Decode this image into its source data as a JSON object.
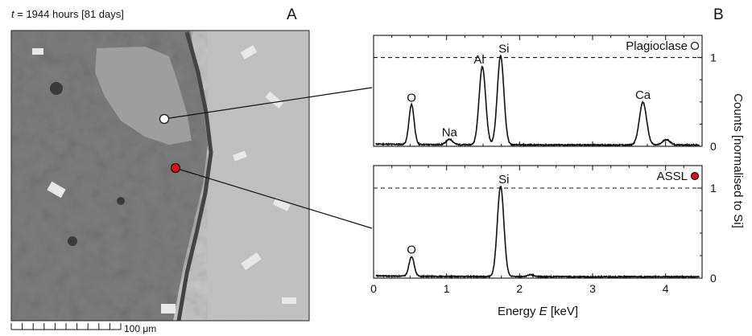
{
  "panel_a": {
    "label": "A",
    "time_prefix": "t",
    "time_suffix": " = 1944 hours [81 days]",
    "scale_bar_label": "100 μm",
    "markers": [
      {
        "name": "plagioclase-point",
        "color": "#ffffff"
      },
      {
        "name": "assl-point",
        "color": "#dd1111"
      }
    ]
  },
  "panel_b": {
    "label": "B",
    "ylabel": "Counts [normalised to Si]",
    "xlabel_prefix": "Energy ",
    "xlabel_var": "E",
    "xlabel_unit": " [keV]"
  },
  "chart_data": [
    {
      "type": "line",
      "title": "Plagioclase",
      "marker_color": "#ffffff",
      "xlim": [
        0,
        4.5
      ],
      "ylim": [
        0,
        1.25
      ],
      "x_ticks": [
        0,
        1,
        2,
        3,
        4
      ],
      "y_ticks": [
        0,
        1
      ],
      "reference_line": 1,
      "peaks": [
        {
          "label": "O",
          "x": 0.52,
          "y": 0.45
        },
        {
          "label": "Na",
          "x": 1.04,
          "y": 0.06
        },
        {
          "label": "Al",
          "x": 1.49,
          "y": 0.88
        },
        {
          "label": "Si",
          "x": 1.74,
          "y": 1.0
        },
        {
          "label": "Ca",
          "x": 3.69,
          "y": 0.48
        }
      ],
      "minor_peaks": [
        {
          "x": 4.01,
          "y": 0.06
        }
      ]
    },
    {
      "type": "line",
      "title": "ASSL",
      "marker_color": "#dd1111",
      "xlim": [
        0,
        4.5
      ],
      "ylim": [
        0,
        1.25
      ],
      "x_ticks": [
        0,
        1,
        2,
        3,
        4
      ],
      "y_ticks": [
        0,
        1
      ],
      "reference_line": 1,
      "peaks": [
        {
          "label": "O",
          "x": 0.52,
          "y": 0.22
        },
        {
          "label": "Si",
          "x": 1.74,
          "y": 1.0
        }
      ],
      "minor_peaks": [
        {
          "x": 2.15,
          "y": 0.02
        }
      ]
    }
  ]
}
